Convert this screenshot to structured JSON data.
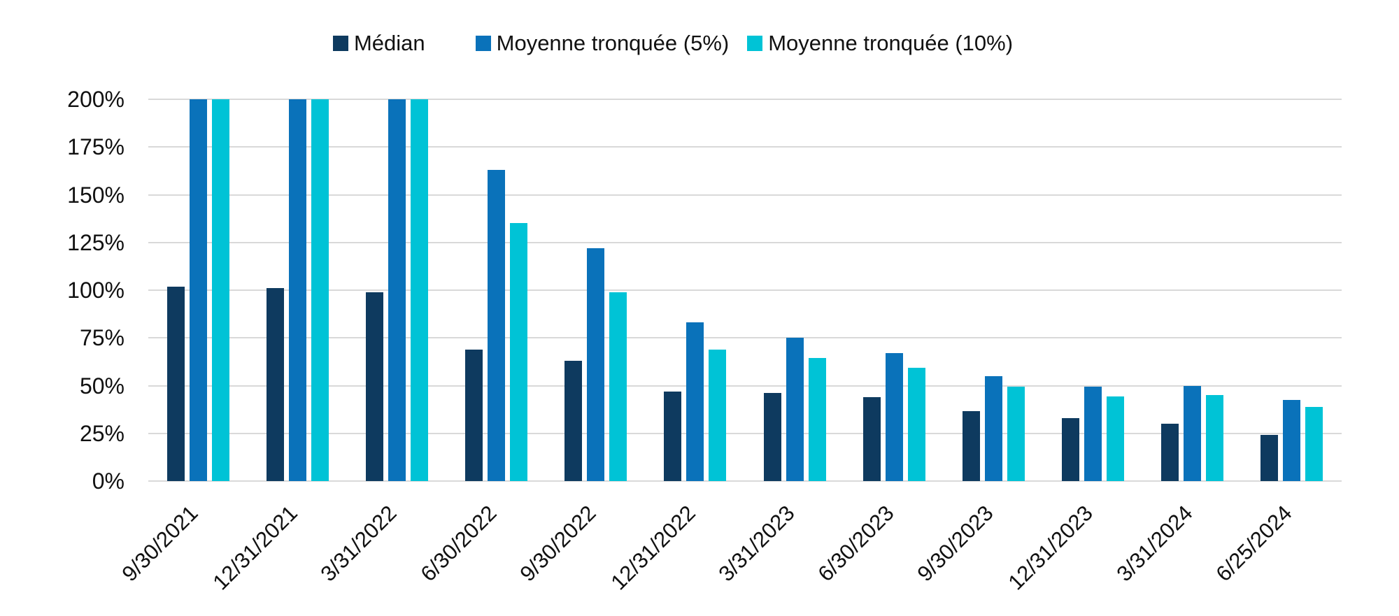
{
  "legend": {
    "items": [
      {
        "label": "Médian",
        "color": "#0e3a5f"
      },
      {
        "label": "Moyenne tronquée (5%)",
        "color": "#0a72ba"
      },
      {
        "label": "Moyenne tronquée (10%)",
        "color": "#00c3d6"
      }
    ]
  },
  "y_axis": {
    "tick_labels": [
      "200%",
      "175%",
      "150%",
      "125%",
      "100%",
      "75%",
      "50%",
      "25%",
      "0%"
    ]
  },
  "chart_data": {
    "type": "bar",
    "title": "",
    "xlabel": "",
    "ylabel": "",
    "categories": [
      "9/30/2021",
      "12/31/2021",
      "3/31/2022",
      "6/30/2022",
      "9/30/2022",
      "12/31/2022",
      "3/31/2023",
      "6/30/2023",
      "9/30/2023",
      "12/31/2023",
      "3/31/2024",
      "6/25/2024"
    ],
    "series": [
      {
        "name": "Médian",
        "color": "#0e3a5f",
        "values": [
          102,
          101,
          99,
          69,
          63,
          47,
          46,
          44,
          36.5,
          33,
          30,
          24
        ]
      },
      {
        "name": "Moyenne tronquée (5%)",
        "color": "#0a72ba",
        "values": [
          200,
          200,
          200,
          163,
          122,
          83,
          75,
          67,
          55,
          49.5,
          50,
          42.5
        ]
      },
      {
        "name": "Moyenne tronquée (10%)",
        "color": "#00c3d6",
        "values": [
          200,
          200,
          200,
          135,
          99,
          69,
          64.5,
          59.5,
          49.5,
          44.5,
          45,
          39
        ]
      }
    ],
    "ylim": [
      0,
      200
    ],
    "ytick_step": 25,
    "ytick_suffix": "%",
    "grid": true,
    "legend_position": "top"
  },
  "colors": {
    "gridline": "#d9d9d9",
    "text": "#111111",
    "background": "#ffffff"
  }
}
